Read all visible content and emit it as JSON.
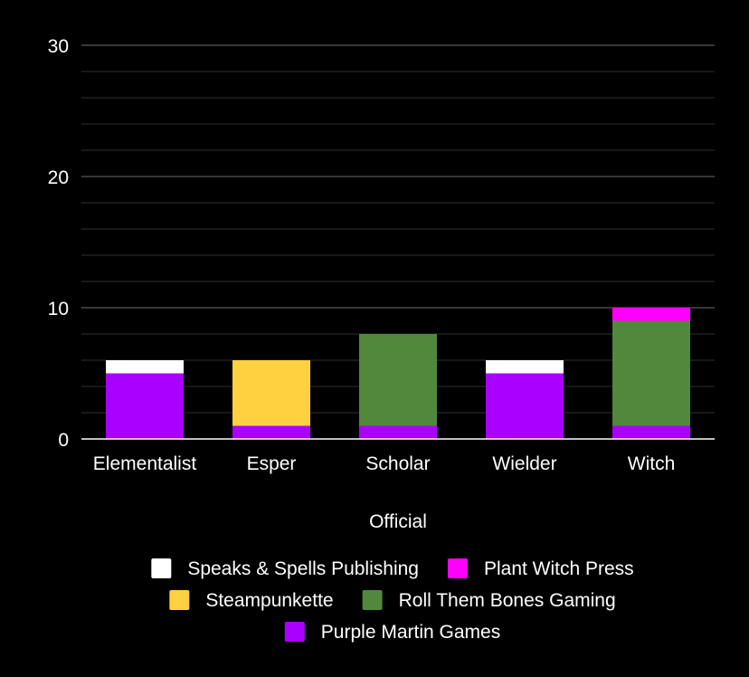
{
  "chart_data": {
    "type": "bar",
    "stacked": true,
    "categories": [
      "Elementalist",
      "Esper",
      "Scholar",
      "Wielder",
      "Witch"
    ],
    "series": [
      {
        "name": "Purple Martin Games",
        "color": "#aa00ff",
        "values": [
          5,
          1,
          1,
          5,
          1
        ]
      },
      {
        "name": "Steampunkette",
        "color": "#ffd040",
        "values": [
          0,
          5,
          0,
          0,
          0
        ]
      },
      {
        "name": "Roll Them Bones Gaming",
        "color": "#52883c",
        "values": [
          0,
          0,
          7,
          0,
          8
        ]
      },
      {
        "name": "Plant Witch Press",
        "color": "#ff00ff",
        "values": [
          0,
          0,
          0,
          0,
          1
        ]
      },
      {
        "name": "Speaks & Spells Publishing",
        "color": "#ffffff",
        "values": [
          1,
          0,
          0,
          1,
          0
        ]
      }
    ],
    "xlabel": "Official",
    "ylabel": "",
    "ylim": [
      0,
      30
    ],
    "yticks": [
      0,
      10,
      20,
      30
    ],
    "grid": true,
    "legend_position": "bottom",
    "legend_order": [
      "Speaks & Spells Publishing",
      "Plant Witch Press",
      "Steampunkette",
      "Roll Them Bones Gaming",
      "Purple Martin Games"
    ]
  }
}
